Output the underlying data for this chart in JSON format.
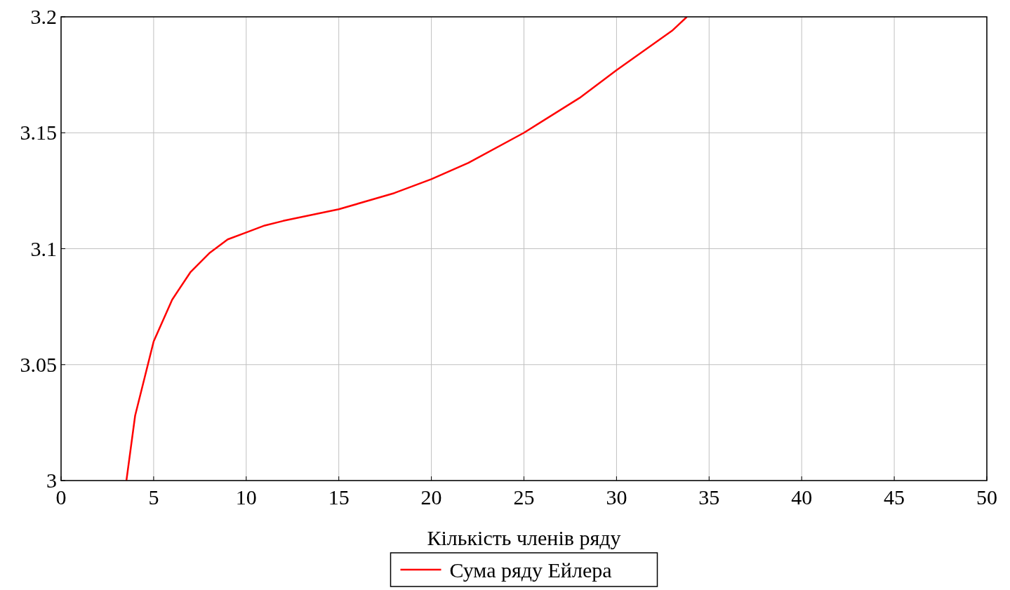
{
  "chart_data": {
    "type": "line",
    "xlabel": "Кількість членів ряду",
    "x": [
      3.53,
      4,
      5,
      6,
      7,
      8,
      9,
      10,
      11,
      12,
      15,
      18,
      20,
      22,
      25,
      28,
      30,
      33,
      33.8
    ],
    "series": [
      {
        "name": "Сума ряду Ейлера",
        "color": "#ff0000",
        "values": [
          3.0,
          3.028,
          3.06,
          3.078,
          3.09,
          3.098,
          3.104,
          3.107,
          3.11,
          3.112,
          3.117,
          3.124,
          3.13,
          3.137,
          3.15,
          3.165,
          3.177,
          3.194,
          3.2
        ]
      }
    ],
    "xlim": [
      0,
      50
    ],
    "ylim": [
      3,
      3.2
    ],
    "xticks": [
      0,
      5,
      10,
      15,
      20,
      25,
      30,
      35,
      40,
      45,
      50
    ],
    "yticks": [
      3,
      3.05,
      3.1,
      3.15,
      3.2
    ],
    "grid": true,
    "legend": "bottom"
  }
}
